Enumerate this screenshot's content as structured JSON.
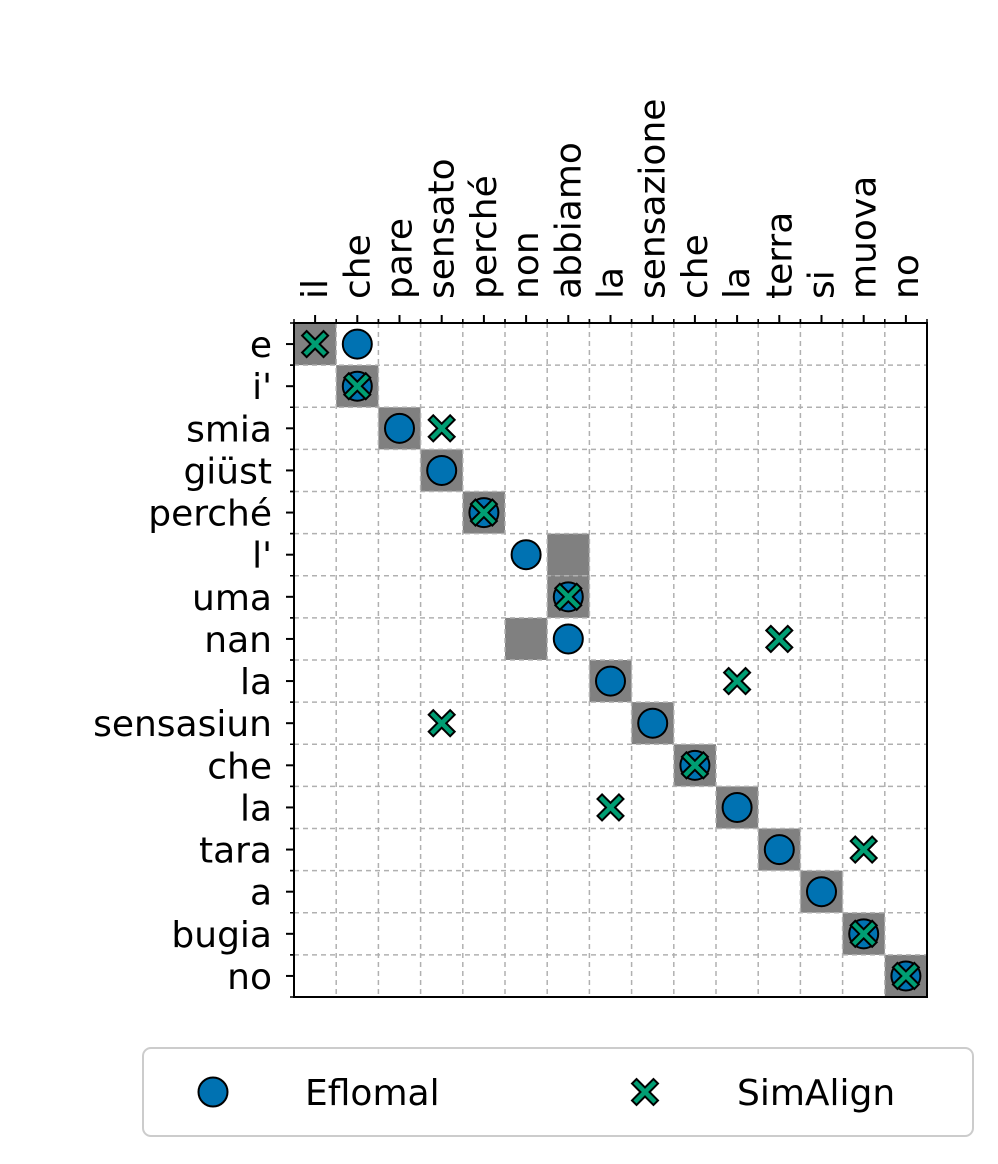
{
  "chart_data": {
    "type": "scatter",
    "x_categories": [
      "il",
      "che",
      "pare",
      "sensato",
      "perché",
      "non",
      "abbiamo",
      "la",
      "sensazione",
      "che",
      "la",
      "terra",
      "si",
      "muova",
      "no"
    ],
    "y_categories": [
      "e",
      "i'",
      "smia",
      "giüst",
      "perché",
      "l'",
      "uma",
      "nan",
      "la",
      "sensasiun",
      "che",
      "la",
      "tara",
      "a",
      "bugia",
      "no"
    ],
    "gold_cells": {
      "x": [
        0,
        1,
        2,
        3,
        4,
        6,
        6,
        5,
        7,
        8,
        9,
        10,
        11,
        12,
        13,
        14
      ],
      "y": [
        0,
        1,
        2,
        3,
        4,
        5,
        6,
        7,
        8,
        9,
        10,
        11,
        12,
        13,
        14,
        15
      ],
      "color": "#808080"
    },
    "series": [
      {
        "name": "Eflomal",
        "color": "#0072b2",
        "marker": "circle",
        "x": [
          1,
          1,
          2,
          3,
          4,
          5,
          6,
          6,
          7,
          8,
          9,
          10,
          11,
          12,
          13,
          14
        ],
        "values": [
          0,
          1,
          2,
          3,
          4,
          5,
          6,
          7,
          8,
          9,
          10,
          11,
          12,
          13,
          14,
          15
        ]
      },
      {
        "name": "SimAlign",
        "color": "#009e73",
        "marker": "x",
        "x": [
          0,
          1,
          3,
          4,
          6,
          11,
          10,
          3,
          9,
          7,
          13,
          13,
          14
        ],
        "values": [
          0,
          1,
          2,
          4,
          6,
          7,
          8,
          9,
          10,
          11,
          12,
          14,
          15
        ]
      }
    ],
    "grid": true,
    "legend": "bottom"
  }
}
